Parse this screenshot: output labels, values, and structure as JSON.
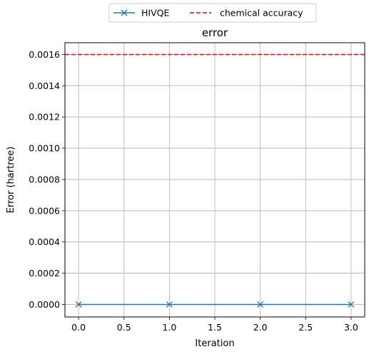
{
  "chart_data": {
    "type": "line",
    "title": "error",
    "xlabel": "Iteration",
    "ylabel": "Error (hartree)",
    "xlim": [
      -0.15,
      3.15
    ],
    "ylim": [
      -8e-05,
      0.001675
    ],
    "xticks": [
      0.0,
      0.5,
      1.0,
      1.5,
      2.0,
      2.5,
      3.0
    ],
    "xtick_labels": [
      "0.0",
      "0.5",
      "1.0",
      "1.5",
      "2.0",
      "2.5",
      "3.0"
    ],
    "yticks": [
      0.0,
      0.0002,
      0.0004,
      0.0006,
      0.0008,
      0.001,
      0.0012,
      0.0014,
      0.0016
    ],
    "ytick_labels": [
      "0.0000",
      "0.0002",
      "0.0004",
      "0.0006",
      "0.0008",
      "0.0010",
      "0.0012",
      "0.0014",
      "0.0016"
    ],
    "grid": true,
    "legend_position": "top-center",
    "series": [
      {
        "name": "HIVQE",
        "x": [
          0,
          1,
          2,
          3
        ],
        "y": [
          0.0,
          0.0,
          0.0,
          0.0
        ],
        "color": "#1f77b4",
        "marker": "x",
        "style": "solid"
      }
    ],
    "reference_lines": [
      {
        "name": "chemical accuracy",
        "y": 0.0016,
        "color": "#ff0000",
        "style": "dashed"
      }
    ]
  }
}
